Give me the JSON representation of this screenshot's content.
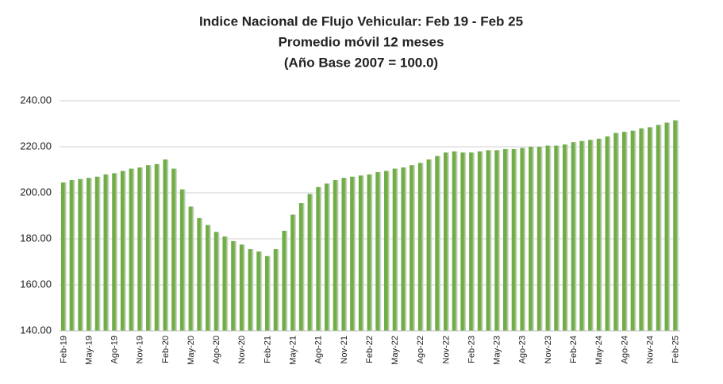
{
  "chart_data": {
    "type": "bar",
    "title": "Indice Nacional de Flujo Vehicular: Feb 19 - Feb 25",
    "subtitle": [
      "Promedio móvil 12 meses",
      "(Año Base 2007 = 100.0)"
    ],
    "categories": [
      "Feb-19",
      null,
      null,
      "May-19",
      null,
      null,
      "Ago-19",
      null,
      null,
      "Nov-19",
      null,
      null,
      "Feb-20",
      null,
      null,
      "May-20",
      null,
      null,
      "Ago-20",
      null,
      null,
      "Nov-20",
      null,
      null,
      "Feb-21",
      null,
      null,
      "May-21",
      null,
      null,
      "Ago-21",
      null,
      null,
      "Nov-21",
      null,
      null,
      "Feb-22",
      null,
      null,
      "May-22",
      null,
      null,
      "Ago-22",
      null,
      null,
      "Nov-22",
      null,
      null,
      "Feb-23",
      null,
      null,
      "May-23",
      null,
      null,
      "Ago-23",
      null,
      null,
      "Nov-23",
      null,
      null,
      "Feb-24",
      null,
      null,
      "May-24",
      null,
      null,
      "Ago-24",
      null,
      null,
      "Nov-24",
      null,
      null,
      "Feb-25"
    ],
    "values": [
      204.5,
      205.5,
      206,
      206.5,
      207,
      208,
      208.5,
      209.5,
      210.5,
      211,
      212,
      212.5,
      214.5,
      210.5,
      201.5,
      194,
      189,
      186,
      183,
      181,
      179,
      177.5,
      175.5,
      174.5,
      172.5,
      175.5,
      183.5,
      190.5,
      195.5,
      199.5,
      202.5,
      204,
      205.5,
      206.5,
      207,
      207.5,
      208,
      209,
      209.5,
      210.5,
      211,
      212,
      213,
      214.5,
      216,
      217.5,
      218,
      217.5,
      217.5,
      218,
      218.5,
      218.5,
      219,
      219,
      219.5,
      220,
      220,
      220.5,
      220.5,
      221,
      222,
      222.5,
      223,
      223.5,
      224.5,
      226,
      226.5,
      227,
      228,
      228.5,
      229.5,
      230.5,
      231.5
    ],
    "color": "#70ad47",
    "ylim": [
      140,
      240
    ],
    "yticks": [
      {
        "value": 140,
        "label": "140.00"
      },
      {
        "value": 160,
        "label": "160.00"
      },
      {
        "value": 180,
        "label": "180.00"
      },
      {
        "value": 200,
        "label": "200.00"
      },
      {
        "value": 220,
        "label": "220.00"
      },
      {
        "value": 240,
        "label": "240.00"
      }
    ],
    "grid": true
  }
}
